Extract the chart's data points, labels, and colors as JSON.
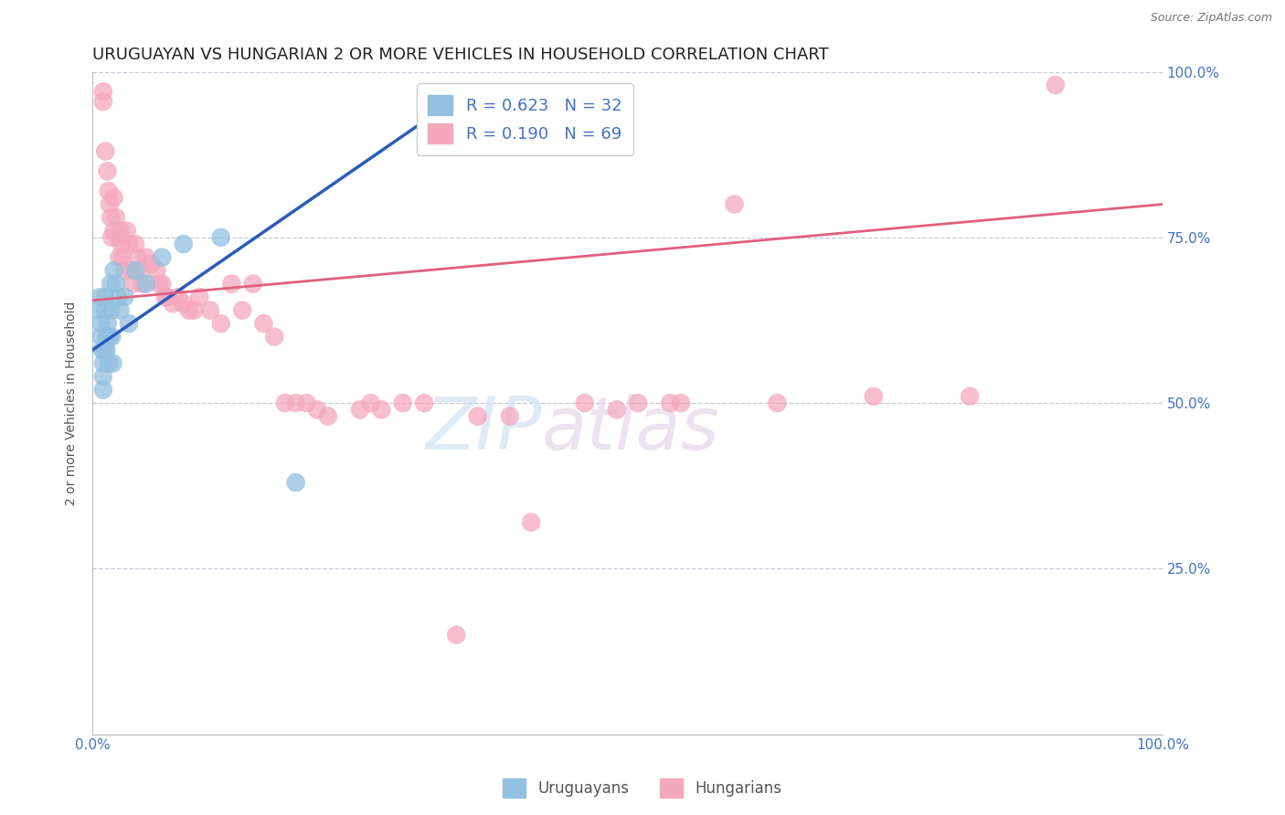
{
  "title": "URUGUAYAN VS HUNGARIAN 2 OR MORE VEHICLES IN HOUSEHOLD CORRELATION CHART",
  "source": "Source: ZipAtlas.com",
  "ylabel": "2 or more Vehicles in Household",
  "xlim": [
    0,
    1
  ],
  "ylim": [
    0,
    1
  ],
  "xtick_positions": [
    0,
    0.25,
    0.5,
    0.75,
    1.0
  ],
  "xticklabels": [
    "0.0%",
    "",
    "",
    "",
    "100.0%"
  ],
  "ytick_positions": [
    0,
    0.25,
    0.5,
    0.75,
    1.0
  ],
  "yticklabels_right": [
    "",
    "25.0%",
    "50.0%",
    "75.0%",
    "100.0%"
  ],
  "watermark_line1": "ZIP",
  "watermark_line2": "atlas",
  "uruguayan_color": "#92c0e0",
  "hungarian_color": "#f4a8be",
  "uruguayan_line_color": "#2b5cb8",
  "hungarian_line_color": "#e06080",
  "title_fontsize": 13,
  "axis_label_fontsize": 10,
  "tick_fontsize": 11,
  "legend_fontsize": 13,
  "grid_color": "#c8c8d8",
  "background_color": "#ffffff",
  "uruguayan_x": [
    0.005,
    0.007,
    0.008,
    0.008,
    0.009,
    0.01,
    0.01,
    0.01,
    0.011,
    0.012,
    0.012,
    0.013,
    0.013,
    0.014,
    0.015,
    0.016,
    0.017,
    0.017,
    0.018,
    0.019,
    0.02,
    0.022,
    0.024,
    0.026,
    0.03,
    0.034,
    0.04,
    0.05,
    0.065,
    0.085,
    0.12,
    0.19
  ],
  "uruguayan_y": [
    0.64,
    0.66,
    0.62,
    0.6,
    0.58,
    0.56,
    0.54,
    0.52,
    0.58,
    0.64,
    0.66,
    0.58,
    0.6,
    0.62,
    0.56,
    0.6,
    0.68,
    0.64,
    0.6,
    0.56,
    0.7,
    0.68,
    0.66,
    0.64,
    0.66,
    0.62,
    0.7,
    0.68,
    0.72,
    0.74,
    0.75,
    0.38
  ],
  "hungarian_x": [
    0.01,
    0.01,
    0.012,
    0.014,
    0.015,
    0.016,
    0.017,
    0.018,
    0.02,
    0.02,
    0.022,
    0.024,
    0.025,
    0.026,
    0.027,
    0.028,
    0.03,
    0.032,
    0.034,
    0.036,
    0.038,
    0.04,
    0.042,
    0.044,
    0.046,
    0.05,
    0.055,
    0.06,
    0.062,
    0.065,
    0.068,
    0.07,
    0.075,
    0.08,
    0.085,
    0.09,
    0.095,
    0.1,
    0.11,
    0.12,
    0.13,
    0.14,
    0.15,
    0.16,
    0.17,
    0.18,
    0.19,
    0.2,
    0.21,
    0.22,
    0.25,
    0.26,
    0.27,
    0.29,
    0.31,
    0.34,
    0.36,
    0.39,
    0.41,
    0.46,
    0.49,
    0.51,
    0.54,
    0.55,
    0.6,
    0.64,
    0.73,
    0.82,
    0.9
  ],
  "hungarian_y": [
    0.97,
    0.955,
    0.88,
    0.85,
    0.82,
    0.8,
    0.78,
    0.75,
    0.81,
    0.76,
    0.78,
    0.75,
    0.72,
    0.76,
    0.74,
    0.72,
    0.7,
    0.76,
    0.74,
    0.7,
    0.68,
    0.74,
    0.72,
    0.7,
    0.68,
    0.72,
    0.71,
    0.7,
    0.68,
    0.68,
    0.66,
    0.66,
    0.65,
    0.66,
    0.65,
    0.64,
    0.64,
    0.66,
    0.64,
    0.62,
    0.68,
    0.64,
    0.68,
    0.62,
    0.6,
    0.5,
    0.5,
    0.5,
    0.49,
    0.48,
    0.49,
    0.5,
    0.49,
    0.5,
    0.5,
    0.15,
    0.48,
    0.48,
    0.32,
    0.5,
    0.49,
    0.5,
    0.5,
    0.5,
    0.8,
    0.5,
    0.51,
    0.51,
    0.98
  ],
  "uru_line_x0": 0.0,
  "uru_line_y0": 0.58,
  "uru_line_x1": 0.35,
  "uru_line_y1": 0.97,
  "hun_line_x0": 0.0,
  "hun_line_y0": 0.655,
  "hun_line_x1": 1.0,
  "hun_line_y1": 0.8
}
